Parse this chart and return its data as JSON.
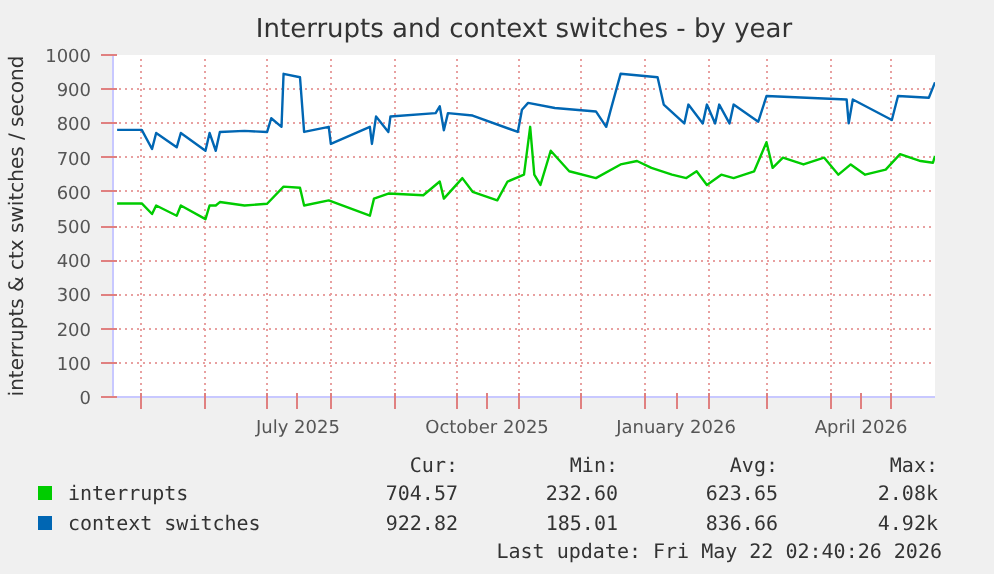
{
  "chart_data": {
    "type": "line",
    "title": "Interrupts and context switches - by year",
    "ylabel": "interrupts & ctx switches / second",
    "xlim": [
      "2025-04-17",
      "2026-05-22"
    ],
    "ylim": [
      0,
      1000
    ],
    "yticks": [
      0,
      100,
      200,
      300,
      400,
      500,
      600,
      700,
      800,
      900,
      1000
    ],
    "xticks": [
      {
        "value": "2025-05-01",
        "label": null
      },
      {
        "value": "2025-06-01",
        "label": null
      },
      {
        "value": "2025-07-01",
        "label": null
      },
      {
        "value": "2025-07-16",
        "label": "July 2025"
      },
      {
        "value": "2025-08-01",
        "label": null
      },
      {
        "value": "2025-09-01",
        "label": null
      },
      {
        "value": "2025-10-01",
        "label": null
      },
      {
        "value": "2025-10-16",
        "label": "October 2025"
      },
      {
        "value": "2025-11-01",
        "label": null
      },
      {
        "value": "2025-12-01",
        "label": null
      },
      {
        "value": "2026-01-01",
        "label": null
      },
      {
        "value": "2026-01-16",
        "label": "January 2026"
      },
      {
        "value": "2026-02-01",
        "label": null
      },
      {
        "value": "2026-03-01",
        "label": null
      },
      {
        "value": "2026-04-01",
        "label": null
      },
      {
        "value": "2026-04-16",
        "label": "April 2026"
      },
      {
        "value": "2026-05-01",
        "label": null
      }
    ],
    "grid": true,
    "legend": "bottom",
    "line_style": "solid",
    "marker": "none",
    "series": [
      {
        "name": "interrupts",
        "color": "#00cc00",
        "x": [
          "2025-04-19",
          "2025-05-01",
          "2025-05-06",
          "2025-05-08",
          "2025-05-18",
          "2025-05-20",
          "2025-06-01",
          "2025-06-03",
          "2025-06-06",
          "2025-06-08",
          "2025-06-20",
          "2025-07-01",
          "2025-07-09",
          "2025-07-17",
          "2025-07-19",
          "2025-07-31",
          "2025-08-20",
          "2025-08-22",
          "2025-08-29",
          "2025-09-15",
          "2025-09-23",
          "2025-09-25",
          "2025-10-04",
          "2025-10-09",
          "2025-10-21",
          "2025-10-26",
          "2025-11-03",
          "2025-11-06",
          "2025-11-08",
          "2025-11-11",
          "2025-11-16",
          "2025-11-25",
          "2025-12-08",
          "2025-12-20",
          "2025-12-28",
          "2026-01-04",
          "2026-01-14",
          "2026-01-21",
          "2026-01-26",
          "2026-01-31",
          "2026-02-07",
          "2026-02-13",
          "2026-02-23",
          "2026-03-01",
          "2026-03-04",
          "2026-03-09",
          "2026-03-19",
          "2026-03-29",
          "2026-04-05",
          "2026-04-11",
          "2026-04-18",
          "2026-04-28",
          "2026-05-05",
          "2026-05-15",
          "2026-05-21",
          "2026-05-22"
        ],
        "values": [
          566,
          566,
          535,
          560,
          530,
          560,
          520,
          560,
          560,
          570,
          560,
          565,
          615,
          612,
          560,
          575,
          530,
          580,
          595,
          590,
          630,
          580,
          640,
          600,
          575,
          630,
          650,
          790,
          650,
          620,
          720,
          660,
          640,
          680,
          690,
          670,
          650,
          640,
          660,
          620,
          650,
          640,
          660,
          745,
          670,
          700,
          680,
          700,
          650,
          680,
          650,
          665,
          710,
          690,
          685,
          705
        ]
      },
      {
        "name": "context switches",
        "color": "#0066b3",
        "x": [
          "2025-04-19",
          "2025-05-01",
          "2025-05-06",
          "2025-05-08",
          "2025-05-18",
          "2025-05-20",
          "2025-06-01",
          "2025-06-03",
          "2025-06-06",
          "2025-06-08",
          "2025-06-20",
          "2025-07-01",
          "2025-07-03",
          "2025-07-08",
          "2025-07-09",
          "2025-07-17",
          "2025-07-19",
          "2025-07-31",
          "2025-08-01",
          "2025-08-20",
          "2025-08-21",
          "2025-08-23",
          "2025-08-29",
          "2025-08-30",
          "2025-09-21",
          "2025-09-23",
          "2025-09-25",
          "2025-09-27",
          "2025-10-09",
          "2025-10-31",
          "2025-11-02",
          "2025-11-05",
          "2025-11-18",
          "2025-12-08",
          "2025-12-13",
          "2025-12-15",
          "2025-12-20",
          "2026-01-07",
          "2026-01-10",
          "2026-01-20",
          "2026-01-22",
          "2026-01-29",
          "2026-01-31",
          "2026-02-04",
          "2026-02-06",
          "2026-02-11",
          "2026-02-13",
          "2026-02-25",
          "2026-03-01",
          "2026-04-09",
          "2026-04-10",
          "2026-04-12",
          "2026-05-01",
          "2026-05-04",
          "2026-05-19",
          "2026-05-22"
        ],
        "values": [
          781,
          781,
          725,
          772,
          730,
          772,
          720,
          772,
          720,
          775,
          778,
          775,
          815,
          790,
          945,
          935,
          775,
          790,
          740,
          790,
          740,
          820,
          775,
          820,
          830,
          850,
          780,
          830,
          823,
          775,
          840,
          860,
          845,
          835,
          790,
          835,
          945,
          935,
          855,
          800,
          855,
          800,
          855,
          800,
          855,
          800,
          855,
          805,
          880,
          870,
          800,
          870,
          810,
          880,
          875,
          920
        ]
      }
    ],
    "annotations": [
      "Cur:",
      "Min:",
      "Avg:",
      "Max:",
      "704.57",
      "232.60",
      "623.65",
      "2.08k",
      "922.82",
      "185.01",
      "836.66",
      "4.92k",
      "Last update: Fri May 22 02:40:26 2026"
    ]
  }
}
